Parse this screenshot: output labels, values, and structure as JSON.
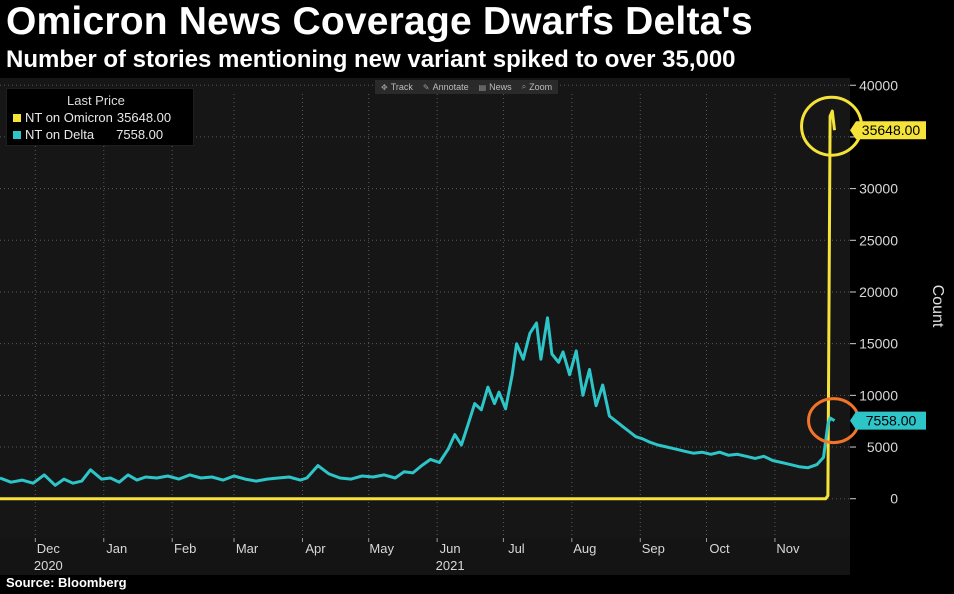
{
  "title": "Omicron News Coverage Dwarfs Delta's",
  "subtitle": "Number of stories mentioning new variant spiked to over 35,000",
  "toolbar": {
    "track": "Track",
    "annotate": "Annotate",
    "news": "News",
    "zoom": "Zoom"
  },
  "legend": {
    "title": "Last Price",
    "omicron_label": "NT on Omicron",
    "omicron_value": "35648.00",
    "delta_label": "NT on Delta",
    "delta_value": "7558.00"
  },
  "source": "Source: Bloomberg",
  "colors": {
    "omicron": "#f5e33a",
    "delta": "#2ec5c9",
    "background": "#161616",
    "grid": "#5a5a5a",
    "circle_omicron": "#f5e33a",
    "circle_delta": "#f0752a"
  },
  "chart_data": {
    "type": "line",
    "title": "Omicron News Coverage Dwarfs Delta's",
    "subtitle": "Number of stories mentioning new variant spiked to over 35,000",
    "xlabel": "",
    "ylabel": "Count",
    "ylim": [
      -3800,
      40700
    ],
    "yticks": [
      0,
      5000,
      10000,
      15000,
      20000,
      25000,
      30000,
      35000,
      40000
    ],
    "ytick_labels": [
      "0",
      "5000",
      "10000",
      "15000",
      "20000",
      "25000",
      "30000",
      "",
      "40000"
    ],
    "xlim": [
      "2020-11-15",
      "2021-12-05"
    ],
    "x_ticks": [
      {
        "date": "2020-12-01",
        "label": "Dec"
      },
      {
        "date": "2021-01-01",
        "label": "Jan"
      },
      {
        "date": "2021-02-01",
        "label": "Feb"
      },
      {
        "date": "2021-03-01",
        "label": "Mar"
      },
      {
        "date": "2021-04-01",
        "label": "Apr"
      },
      {
        "date": "2021-05-01",
        "label": "May"
      },
      {
        "date": "2021-06-01",
        "label": "Jun"
      },
      {
        "date": "2021-07-01",
        "label": "Jul"
      },
      {
        "date": "2021-08-01",
        "label": "Aug"
      },
      {
        "date": "2021-09-01",
        "label": "Sep"
      },
      {
        "date": "2021-10-01",
        "label": "Oct"
      },
      {
        "date": "2021-11-01",
        "label": "Nov"
      }
    ],
    "year_labels": [
      {
        "date": "2020-12-01",
        "label": "2020"
      },
      {
        "date": "2021-06-01",
        "label": "2021"
      }
    ],
    "grid": true,
    "legend_position": "top-left",
    "last_values": [
      {
        "series": "NT on Omicron",
        "value": 35648.0,
        "label": "35648.00"
      },
      {
        "series": "NT on Delta",
        "value": 7558.0,
        "label": "7558.00"
      }
    ],
    "series": [
      {
        "name": "NT on Omicron",
        "color": "#f5e33a",
        "x": [
          "2020-11-15",
          "2021-11-22",
          "2021-11-24",
          "2021-11-25",
          "2021-11-26",
          "2021-11-27",
          "2021-11-28"
        ],
        "values": [
          0,
          0,
          0,
          300,
          37000,
          37500,
          35648
        ]
      },
      {
        "name": "NT on Delta",
        "color": "#2ec5c9",
        "x": [
          "2020-11-15",
          "2020-11-20",
          "2020-11-25",
          "2020-11-30",
          "2020-12-05",
          "2020-12-10",
          "2020-12-14",
          "2020-12-18",
          "2020-12-22",
          "2020-12-26",
          "2020-12-31",
          "2021-01-04",
          "2021-01-08",
          "2021-01-12",
          "2021-01-16",
          "2021-01-20",
          "2021-01-25",
          "2021-01-30",
          "2021-02-04",
          "2021-02-09",
          "2021-02-14",
          "2021-02-19",
          "2021-02-24",
          "2021-03-01",
          "2021-03-06",
          "2021-03-11",
          "2021-03-16",
          "2021-03-21",
          "2021-03-26",
          "2021-03-31",
          "2021-04-03",
          "2021-04-08",
          "2021-04-13",
          "2021-04-18",
          "2021-04-23",
          "2021-04-28",
          "2021-05-03",
          "2021-05-08",
          "2021-05-13",
          "2021-05-17",
          "2021-05-21",
          "2021-05-25",
          "2021-05-29",
          "2021-06-02",
          "2021-06-06",
          "2021-06-09",
          "2021-06-12",
          "2021-06-15",
          "2021-06-18",
          "2021-06-21",
          "2021-06-24",
          "2021-06-27",
          "2021-06-29",
          "2021-07-02",
          "2021-07-05",
          "2021-07-07",
          "2021-07-10",
          "2021-07-13",
          "2021-07-16",
          "2021-07-18",
          "2021-07-21",
          "2021-07-23",
          "2021-07-26",
          "2021-07-28",
          "2021-07-31",
          "2021-08-03",
          "2021-08-06",
          "2021-08-09",
          "2021-08-12",
          "2021-08-15",
          "2021-08-18",
          "2021-08-21",
          "2021-08-24",
          "2021-08-27",
          "2021-08-30",
          "2021-09-02",
          "2021-09-05",
          "2021-09-09",
          "2021-09-13",
          "2021-09-17",
          "2021-09-21",
          "2021-09-25",
          "2021-09-29",
          "2021-10-03",
          "2021-10-07",
          "2021-10-11",
          "2021-10-15",
          "2021-10-19",
          "2021-10-23",
          "2021-10-27",
          "2021-10-31",
          "2021-11-04",
          "2021-11-08",
          "2021-11-12",
          "2021-11-16",
          "2021-11-20",
          "2021-11-23",
          "2021-11-25",
          "2021-11-26",
          "2021-11-28"
        ],
        "values": [
          2000,
          1600,
          1800,
          1500,
          2300,
          1300,
          1900,
          1500,
          1700,
          2800,
          1900,
          2000,
          1600,
          2300,
          1800,
          2100,
          2000,
          2200,
          1900,
          2300,
          2000,
          2100,
          1800,
          2200,
          1900,
          1700,
          1900,
          2000,
          2100,
          1800,
          2000,
          3200,
          2400,
          2000,
          1900,
          2200,
          2100,
          2300,
          2000,
          2600,
          2500,
          3200,
          3800,
          3500,
          4800,
          6200,
          5200,
          7200,
          9200,
          8600,
          10800,
          9200,
          10300,
          8700,
          12000,
          15000,
          13500,
          16000,
          17000,
          13500,
          17500,
          14000,
          13200,
          14200,
          12000,
          14300,
          10000,
          12500,
          9000,
          11000,
          8000,
          7500,
          7000,
          6500,
          6000,
          5800,
          5500,
          5200,
          5000,
          4800,
          4600,
          4400,
          4500,
          4300,
          4500,
          4200,
          4300,
          4100,
          3900,
          4100,
          3700,
          3500,
          3300,
          3100,
          3000,
          3300,
          4000,
          7200,
          7800,
          7558
        ]
      }
    ]
  }
}
